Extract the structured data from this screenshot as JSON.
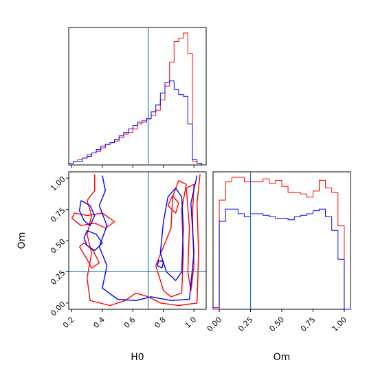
{
  "chart_data": [
    {
      "panel": "H0",
      "type": "histogram-step",
      "x_range": [
        0.18,
        1.08
      ],
      "truth_value": 0.7,
      "bin_edges": [
        0.18,
        0.21,
        0.24,
        0.27,
        0.3,
        0.33,
        0.36,
        0.39,
        0.42,
        0.45,
        0.48,
        0.51,
        0.54,
        0.57,
        0.6,
        0.63,
        0.66,
        0.69,
        0.72,
        0.75,
        0.78,
        0.81,
        0.84,
        0.87,
        0.9,
        0.93,
        0.96,
        0.99,
        1.02,
        1.05
      ],
      "series": [
        {
          "name": "",
          "color": "#ff0000",
          "values": [
            1,
            2,
            3,
            4,
            6,
            7,
            8,
            10,
            12,
            13,
            14,
            16,
            18,
            19,
            21,
            24,
            26,
            27,
            29,
            32,
            38,
            46,
            60,
            72,
            74,
            77,
            65,
            2,
            1
          ]
        },
        {
          "name": "",
          "color": "#0000ff",
          "values": [
            1,
            2,
            2,
            4,
            5,
            7,
            9,
            11,
            12,
            13,
            15,
            17,
            19,
            21,
            23,
            25,
            25,
            27,
            31,
            35,
            42,
            48,
            49,
            44,
            41,
            40,
            24,
            3,
            1
          ]
        }
      ]
    },
    {
      "panel": "Om",
      "type": "histogram-step",
      "x_range": [
        -0.05,
        1.05
      ],
      "truth_value": 0.25,
      "bin_edges": [
        -0.05,
        0.0,
        0.05,
        0.1,
        0.15,
        0.2,
        0.25,
        0.3,
        0.35,
        0.4,
        0.45,
        0.5,
        0.55,
        0.6,
        0.65,
        0.7,
        0.75,
        0.8,
        0.85,
        0.9,
        0.95,
        1.0,
        1.05
      ],
      "series": [
        {
          "name": "",
          "color": "#ff0000",
          "values": [
            0,
            72,
            84,
            87,
            87,
            84,
            84,
            84,
            86,
            83,
            85,
            81,
            77,
            77,
            76,
            74,
            78,
            85,
            80,
            77,
            55,
            0
          ]
        },
        {
          "name": "",
          "color": "#0000ff",
          "values": [
            1,
            58,
            66,
            66,
            63,
            61,
            63,
            63,
            62,
            61,
            60,
            60,
            59,
            61,
            62,
            63,
            65,
            66,
            61,
            52,
            33,
            0
          ]
        }
      ]
    },
    {
      "panel": "H0-Om",
      "type": "contour",
      "xlabel": "H0",
      "ylabel": "Om",
      "xlim": [
        0.18,
        1.08
      ],
      "ylim": [
        -0.05,
        1.05
      ],
      "x_ticks": [
        "0.2",
        "0.4",
        "0.6",
        "0.8",
        "1.0"
      ],
      "y_ticks": [
        "0.00",
        "0.25",
        "0.50",
        "0.75",
        "1.00"
      ],
      "truth": {
        "H0": 0.7,
        "Om": 0.25
      },
      "series": [
        {
          "name": "",
          "color": "#ff0000",
          "contours": [
            [
              [
                0.35,
                1.03
              ],
              [
                0.35,
                0.9
              ],
              [
                0.3,
                0.82
              ],
              [
                0.33,
                0.7
              ],
              [
                0.3,
                0.55
              ],
              [
                0.33,
                0.4
              ],
              [
                0.3,
                0.2
              ],
              [
                0.32,
                0.02
              ],
              [
                0.45,
                -0.02
              ],
              [
                0.55,
                0.02
              ],
              [
                0.62,
                0.08
              ],
              [
                0.7,
                0.05
              ],
              [
                0.78,
                0.0
              ],
              [
                0.9,
                -0.02
              ],
              [
                1.02,
                0.0
              ],
              [
                1.03,
                0.4
              ],
              [
                1.02,
                0.8
              ],
              [
                1.04,
                1.03
              ]
            ],
            [
              [
                0.2,
                0.68
              ],
              [
                0.26,
                0.62
              ],
              [
                0.35,
                0.64
              ],
              [
                0.42,
                0.6
              ],
              [
                0.48,
                0.65
              ],
              [
                0.4,
                0.72
              ],
              [
                0.3,
                0.7
              ],
              [
                0.22,
                0.72
              ],
              [
                0.2,
                0.68
              ]
            ],
            [
              [
                0.25,
                0.45
              ],
              [
                0.3,
                0.35
              ],
              [
                0.33,
                0.28
              ],
              [
                0.38,
                0.32
              ],
              [
                0.34,
                0.42
              ],
              [
                0.28,
                0.48
              ],
              [
                0.25,
                0.45
              ]
            ],
            [
              [
                0.75,
                0.3
              ],
              [
                0.8,
                0.1
              ],
              [
                0.85,
                0.05
              ],
              [
                0.92,
                0.08
              ],
              [
                0.93,
                0.4
              ],
              [
                0.92,
                0.75
              ],
              [
                0.95,
                0.95
              ],
              [
                0.9,
                0.98
              ],
              [
                0.86,
                0.85
              ],
              [
                0.85,
                0.6
              ],
              [
                0.8,
                0.45
              ],
              [
                0.75,
                0.3
              ]
            ],
            [
              [
                0.83,
                0.78
              ],
              [
                0.88,
                0.72
              ],
              [
                0.9,
                0.8
              ],
              [
                0.86,
                0.86
              ],
              [
                0.83,
                0.78
              ]
            ],
            [
              [
                0.95,
                0.92
              ],
              [
                0.97,
                0.6
              ],
              [
                0.96,
                0.25
              ],
              [
                0.98,
                0.1
              ],
              [
                1.0,
                0.3
              ],
              [
                0.99,
                0.7
              ],
              [
                1.0,
                0.95
              ],
              [
                0.95,
                0.92
              ]
            ]
          ]
        },
        {
          "name": "",
          "color": "#0000ff",
          "contours": [
            [
              [
                0.4,
                1.02
              ],
              [
                0.42,
                0.9
              ],
              [
                0.38,
                0.78
              ],
              [
                0.43,
                0.62
              ],
              [
                0.38,
                0.45
              ],
              [
                0.43,
                0.3
              ],
              [
                0.4,
                0.12
              ],
              [
                0.5,
                0.03
              ],
              [
                0.62,
                0.02
              ],
              [
                0.72,
                0.05
              ],
              [
                0.85,
                0.02
              ],
              [
                0.97,
                0.03
              ],
              [
                1.0,
                0.4
              ],
              [
                0.98,
                0.8
              ],
              [
                1.02,
                1.02
              ]
            ],
            [
              [
                0.26,
                0.82
              ],
              [
                0.32,
                0.78
              ],
              [
                0.35,
                0.7
              ],
              [
                0.32,
                0.62
              ],
              [
                0.28,
                0.66
              ],
              [
                0.25,
                0.74
              ],
              [
                0.26,
                0.82
              ]
            ],
            [
              [
                0.3,
                0.58
              ],
              [
                0.36,
                0.55
              ],
              [
                0.4,
                0.48
              ],
              [
                0.35,
                0.42
              ],
              [
                0.3,
                0.46
              ],
              [
                0.28,
                0.52
              ],
              [
                0.3,
                0.58
              ]
            ],
            [
              [
                0.78,
                0.4
              ],
              [
                0.82,
                0.25
              ],
              [
                0.88,
                0.18
              ],
              [
                0.92,
                0.25
              ],
              [
                0.93,
                0.6
              ],
              [
                0.92,
                0.85
              ],
              [
                0.88,
                0.92
              ],
              [
                0.83,
                0.85
              ],
              [
                0.8,
                0.65
              ],
              [
                0.78,
                0.4
              ]
            ],
            [
              [
                0.76,
                0.3
              ],
              [
                0.79,
                0.28
              ],
              [
                0.8,
                0.33
              ],
              [
                0.77,
                0.34
              ],
              [
                0.76,
                0.3
              ]
            ]
          ]
        }
      ]
    }
  ]
}
